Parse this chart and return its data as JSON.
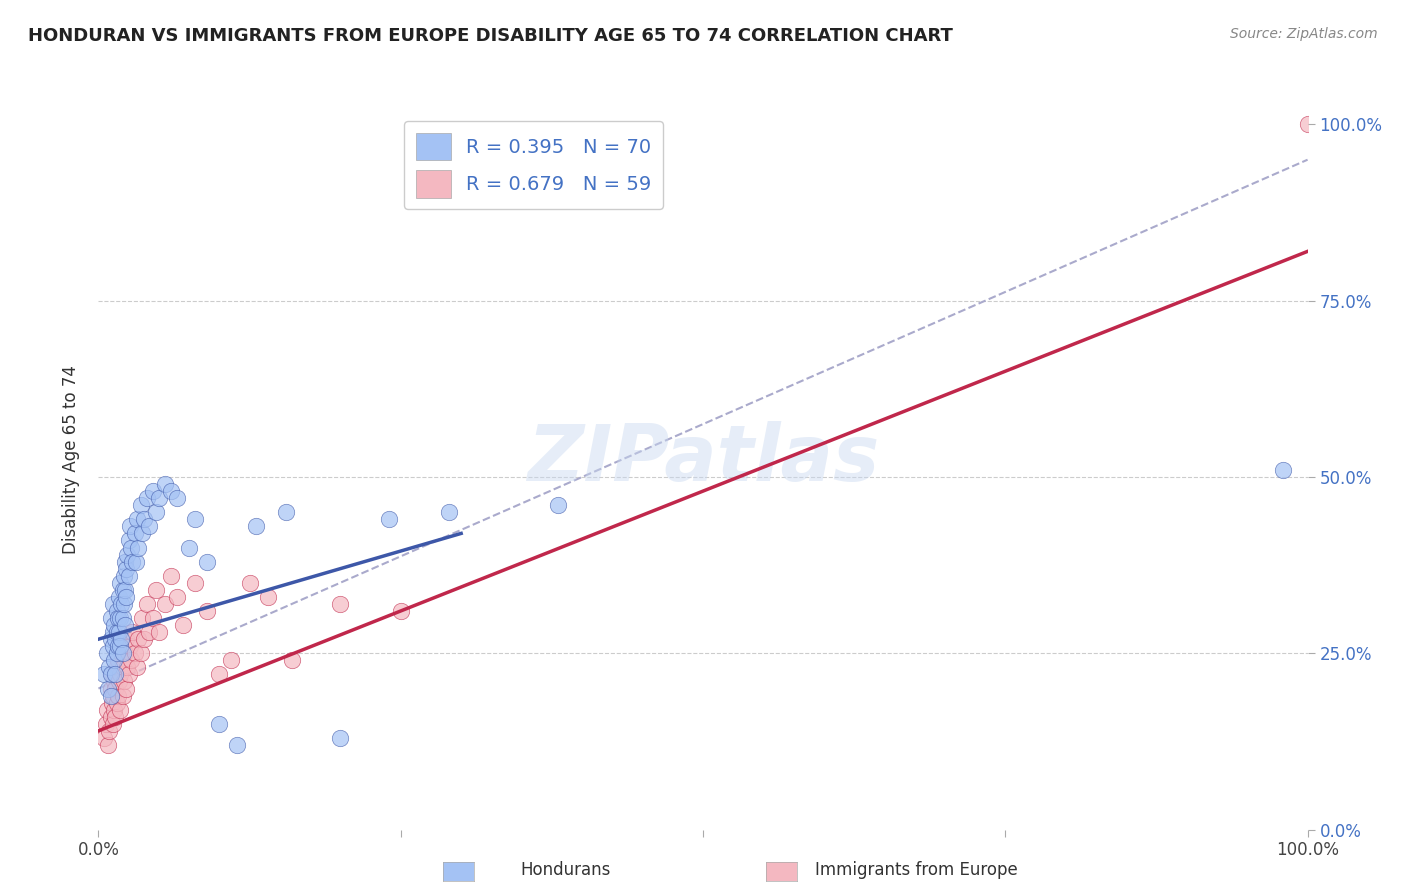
{
  "title": "HONDURAN VS IMMIGRANTS FROM EUROPE DISABILITY AGE 65 TO 74 CORRELATION CHART",
  "source": "Source: ZipAtlas.com",
  "ylabel": "Disability Age 65 to 74",
  "watermark": "ZIPatlas",
  "legend_blue_label": "Hondurans",
  "legend_pink_label": "Immigrants from Europe",
  "R_blue": 0.395,
  "N_blue": 70,
  "R_pink": 0.679,
  "N_pink": 59,
  "blue_color": "#a4c2f4",
  "pink_color": "#f4b8c1",
  "blue_line_color": "#3d57a8",
  "pink_line_color": "#c0274b",
  "diagonal_color": "#aaaacc",
  "blue_scatter": [
    [
      0.005,
      0.22
    ],
    [
      0.007,
      0.25
    ],
    [
      0.008,
      0.2
    ],
    [
      0.009,
      0.23
    ],
    [
      0.01,
      0.27
    ],
    [
      0.01,
      0.3
    ],
    [
      0.01,
      0.22
    ],
    [
      0.01,
      0.19
    ],
    [
      0.012,
      0.26
    ],
    [
      0.012,
      0.28
    ],
    [
      0.012,
      0.32
    ],
    [
      0.013,
      0.24
    ],
    [
      0.013,
      0.29
    ],
    [
      0.014,
      0.27
    ],
    [
      0.014,
      0.22
    ],
    [
      0.015,
      0.31
    ],
    [
      0.015,
      0.28
    ],
    [
      0.015,
      0.25
    ],
    [
      0.016,
      0.3
    ],
    [
      0.016,
      0.26
    ],
    [
      0.017,
      0.33
    ],
    [
      0.017,
      0.28
    ],
    [
      0.018,
      0.35
    ],
    [
      0.018,
      0.3
    ],
    [
      0.018,
      0.26
    ],
    [
      0.019,
      0.32
    ],
    [
      0.019,
      0.27
    ],
    [
      0.02,
      0.34
    ],
    [
      0.02,
      0.3
    ],
    [
      0.02,
      0.25
    ],
    [
      0.021,
      0.36
    ],
    [
      0.021,
      0.32
    ],
    [
      0.022,
      0.38
    ],
    [
      0.022,
      0.34
    ],
    [
      0.022,
      0.29
    ],
    [
      0.023,
      0.37
    ],
    [
      0.023,
      0.33
    ],
    [
      0.024,
      0.39
    ],
    [
      0.025,
      0.41
    ],
    [
      0.025,
      0.36
    ],
    [
      0.026,
      0.43
    ],
    [
      0.027,
      0.4
    ],
    [
      0.028,
      0.38
    ],
    [
      0.03,
      0.42
    ],
    [
      0.031,
      0.38
    ],
    [
      0.032,
      0.44
    ],
    [
      0.033,
      0.4
    ],
    [
      0.035,
      0.46
    ],
    [
      0.036,
      0.42
    ],
    [
      0.038,
      0.44
    ],
    [
      0.04,
      0.47
    ],
    [
      0.042,
      0.43
    ],
    [
      0.045,
      0.48
    ],
    [
      0.048,
      0.45
    ],
    [
      0.05,
      0.47
    ],
    [
      0.055,
      0.49
    ],
    [
      0.06,
      0.48
    ],
    [
      0.065,
      0.47
    ],
    [
      0.075,
      0.4
    ],
    [
      0.08,
      0.44
    ],
    [
      0.09,
      0.38
    ],
    [
      0.1,
      0.15
    ],
    [
      0.115,
      0.12
    ],
    [
      0.13,
      0.43
    ],
    [
      0.155,
      0.45
    ],
    [
      0.2,
      0.13
    ],
    [
      0.24,
      0.44
    ],
    [
      0.29,
      0.45
    ],
    [
      0.38,
      0.46
    ],
    [
      0.98,
      0.51
    ]
  ],
  "pink_scatter": [
    [
      0.005,
      0.13
    ],
    [
      0.006,
      0.15
    ],
    [
      0.007,
      0.17
    ],
    [
      0.008,
      0.12
    ],
    [
      0.009,
      0.14
    ],
    [
      0.01,
      0.16
    ],
    [
      0.01,
      0.2
    ],
    [
      0.011,
      0.18
    ],
    [
      0.011,
      0.22
    ],
    [
      0.012,
      0.15
    ],
    [
      0.012,
      0.19
    ],
    [
      0.013,
      0.17
    ],
    [
      0.013,
      0.21
    ],
    [
      0.014,
      0.16
    ],
    [
      0.014,
      0.2
    ],
    [
      0.015,
      0.18
    ],
    [
      0.015,
      0.23
    ],
    [
      0.016,
      0.19
    ],
    [
      0.016,
      0.24
    ],
    [
      0.017,
      0.21
    ],
    [
      0.018,
      0.17
    ],
    [
      0.018,
      0.22
    ],
    [
      0.019,
      0.25
    ],
    [
      0.02,
      0.19
    ],
    [
      0.02,
      0.23
    ],
    [
      0.021,
      0.21
    ],
    [
      0.022,
      0.25
    ],
    [
      0.023,
      0.2
    ],
    [
      0.023,
      0.27
    ],
    [
      0.024,
      0.23
    ],
    [
      0.025,
      0.22
    ],
    [
      0.026,
      0.26
    ],
    [
      0.027,
      0.24
    ],
    [
      0.028,
      0.28
    ],
    [
      0.03,
      0.25
    ],
    [
      0.032,
      0.23
    ],
    [
      0.033,
      0.27
    ],
    [
      0.035,
      0.25
    ],
    [
      0.036,
      0.3
    ],
    [
      0.038,
      0.27
    ],
    [
      0.04,
      0.32
    ],
    [
      0.042,
      0.28
    ],
    [
      0.045,
      0.3
    ],
    [
      0.048,
      0.34
    ],
    [
      0.05,
      0.28
    ],
    [
      0.055,
      0.32
    ],
    [
      0.06,
      0.36
    ],
    [
      0.065,
      0.33
    ],
    [
      0.07,
      0.29
    ],
    [
      0.08,
      0.35
    ],
    [
      0.09,
      0.31
    ],
    [
      0.1,
      0.22
    ],
    [
      0.11,
      0.24
    ],
    [
      0.125,
      0.35
    ],
    [
      0.14,
      0.33
    ],
    [
      0.16,
      0.24
    ],
    [
      0.2,
      0.32
    ],
    [
      0.25,
      0.31
    ],
    [
      1.0,
      1.0
    ]
  ],
  "blue_line": [
    [
      0.0,
      0.27
    ],
    [
      0.3,
      0.42
    ]
  ],
  "pink_line": [
    [
      0.0,
      0.14
    ],
    [
      1.0,
      0.82
    ]
  ],
  "diagonal_line": [
    [
      0.0,
      0.2
    ],
    [
      1.0,
      0.95
    ]
  ],
  "xlim": [
    0.0,
    1.0
  ],
  "ylim": [
    0.0,
    1.05
  ]
}
